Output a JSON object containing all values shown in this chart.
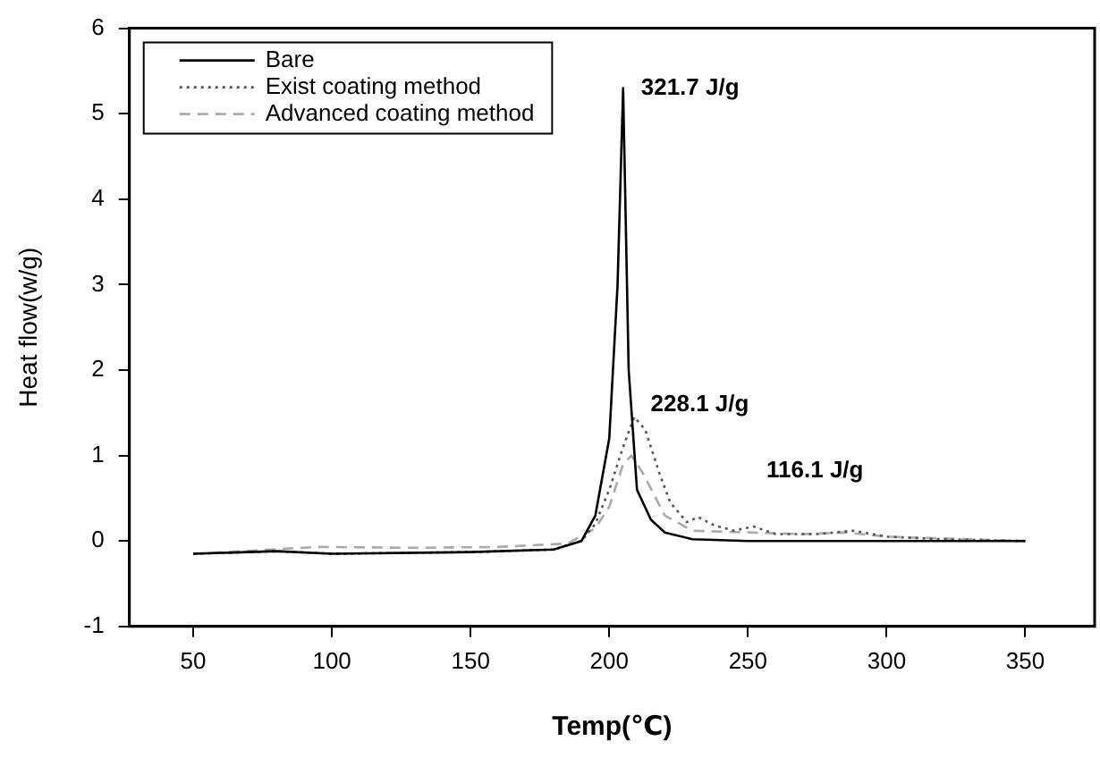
{
  "chart_data": {
    "type": "line",
    "xlabel": "Temp(℃)",
    "ylabel": "Heat flow(w/g)",
    "xlim": [
      27,
      375
    ],
    "xticks": [
      50,
      100,
      150,
      200,
      250,
      300,
      350
    ],
    "ylim": [
      -1,
      6
    ],
    "yticks": [
      -1,
      0,
      1,
      2,
      3,
      4,
      5,
      6
    ],
    "grid": false,
    "legend": "top left",
    "marker": "none",
    "series": [
      {
        "name": "Bare",
        "color": "#000000",
        "line_style": "solid",
        "x": [
          50,
          80,
          100,
          150,
          180,
          190,
          195,
          200,
          203,
          205,
          207,
          210,
          215,
          220,
          230,
          250,
          300,
          350
        ],
        "values": [
          -0.15,
          -0.12,
          -0.15,
          -0.13,
          -0.1,
          0.0,
          0.3,
          1.2,
          3.0,
          5.3,
          2.0,
          0.6,
          0.25,
          0.1,
          0.02,
          0.0,
          0.0,
          0.0
        ]
      },
      {
        "name": "Exist coating method",
        "color": "#555555",
        "line_style": "dotted",
        "x": [
          50,
          80,
          100,
          150,
          180,
          190,
          195,
          200,
          205,
          209,
          213,
          218,
          222,
          228,
          232,
          238,
          245,
          252,
          260,
          275,
          288,
          300,
          320,
          350
        ],
        "values": [
          -0.15,
          -0.12,
          -0.15,
          -0.13,
          -0.1,
          0.0,
          0.2,
          0.6,
          1.1,
          1.45,
          1.3,
          0.8,
          0.45,
          0.22,
          0.28,
          0.18,
          0.12,
          0.17,
          0.08,
          0.08,
          0.12,
          0.05,
          0.02,
          0.0
        ]
      },
      {
        "name": "Advanced coating method",
        "color": "#aaaaaa",
        "line_style": "dashed",
        "x": [
          50,
          95,
          130,
          160,
          185,
          195,
          200,
          205,
          208,
          212,
          220,
          230,
          250,
          270,
          285,
          300,
          350
        ],
        "values": [
          -0.15,
          -0.07,
          -0.08,
          -0.07,
          -0.03,
          0.15,
          0.4,
          0.9,
          1.0,
          0.8,
          0.3,
          0.12,
          0.1,
          0.08,
          0.1,
          0.05,
          0.0
        ]
      }
    ],
    "annotations": [
      "321.7 J/g",
      "228.1 J/g",
      "116.1 J/g"
    ]
  }
}
